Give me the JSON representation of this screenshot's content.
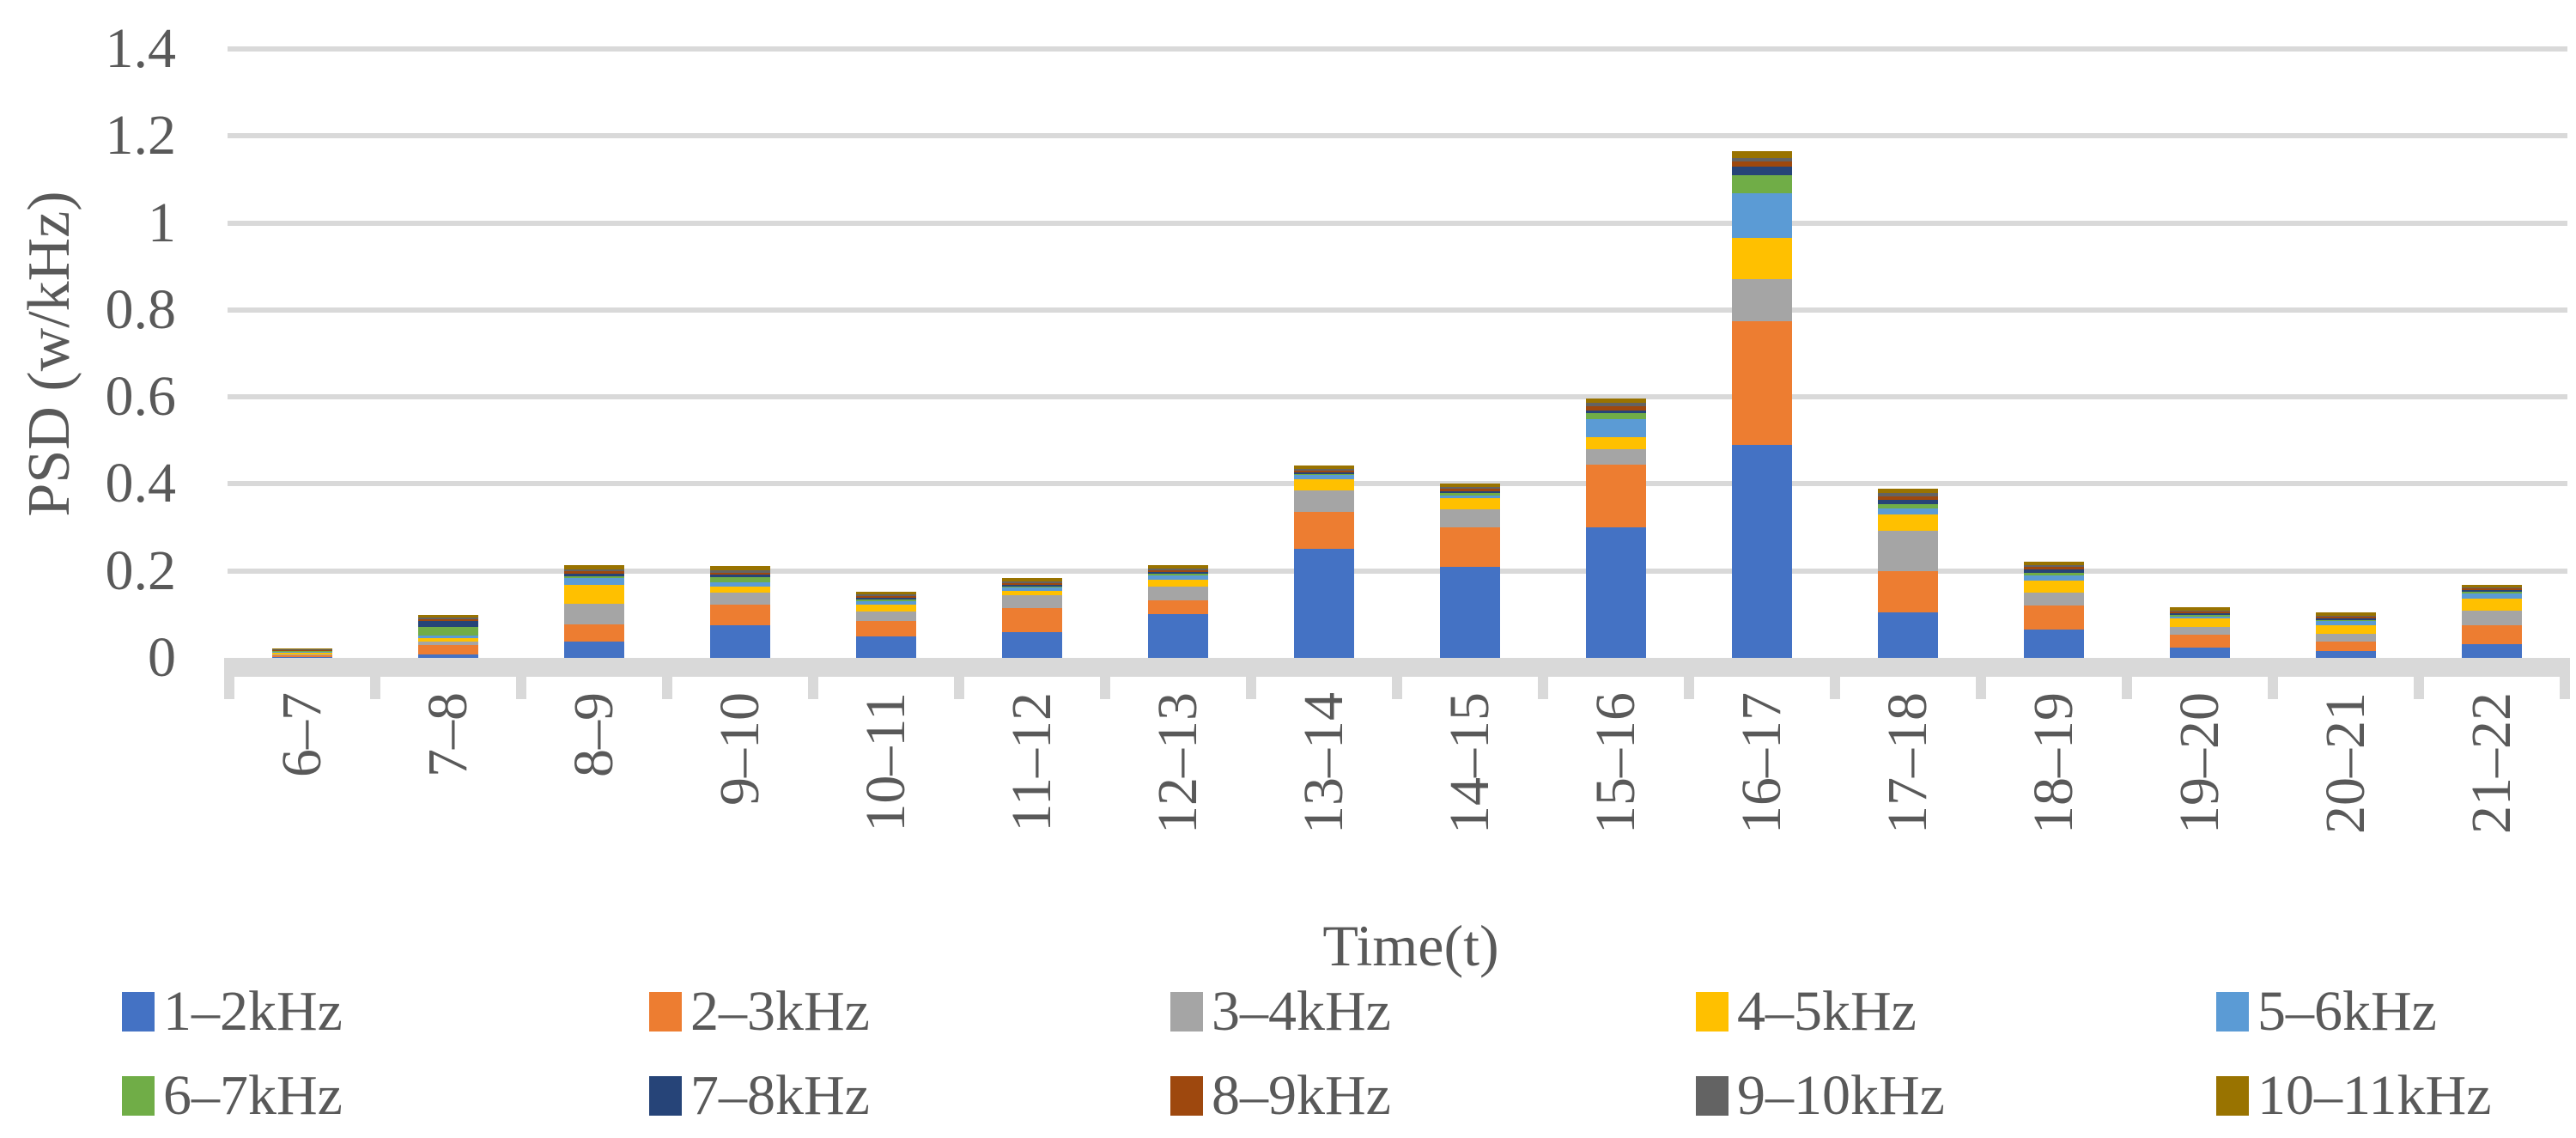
{
  "chart_data": {
    "type": "bar",
    "stacked": true,
    "title": "",
    "xlabel": "Time(t)",
    "ylabel": "PSD (w/kHz)",
    "ylim": [
      0,
      1.4
    ],
    "ytick_step": 0.2,
    "ytick_labels": [
      "0",
      "0.2",
      "0.4",
      "0.6",
      "0.8",
      "1",
      "1.2",
      "1.4"
    ],
    "grid": "horizontal",
    "legend_position": "bottom",
    "categories": [
      "6–7",
      "7–8",
      "8–9",
      "9–10",
      "10–11",
      "11–12",
      "12–13",
      "13–14",
      "14–15",
      "15–16",
      "16–17",
      "17–18",
      "18–19",
      "19–20",
      "20–21",
      "21–22"
    ],
    "series": [
      {
        "name": "1–2kHz",
        "color": "#4472C4",
        "values": [
          0.002,
          0.007,
          0.037,
          0.075,
          0.05,
          0.059,
          0.1,
          0.25,
          0.21,
          0.3,
          0.49,
          0.105,
          0.065,
          0.024,
          0.016,
          0.032
        ]
      },
      {
        "name": "2–3kHz",
        "color": "#ED7D31",
        "values": [
          0.003,
          0.022,
          0.04,
          0.047,
          0.035,
          0.055,
          0.032,
          0.085,
          0.09,
          0.145,
          0.285,
          0.095,
          0.056,
          0.029,
          0.021,
          0.043
        ]
      },
      {
        "name": "3–4kHz",
        "color": "#A5A5A5",
        "values": [
          0.002,
          0.009,
          0.047,
          0.028,
          0.022,
          0.03,
          0.031,
          0.05,
          0.042,
          0.035,
          0.095,
          0.092,
          0.03,
          0.018,
          0.018,
          0.034
        ]
      },
      {
        "name": "4–5kHz",
        "color": "#FFC000",
        "values": [
          0.004,
          0.008,
          0.044,
          0.013,
          0.015,
          0.01,
          0.016,
          0.025,
          0.025,
          0.027,
          0.095,
          0.038,
          0.027,
          0.02,
          0.02,
          0.028
        ]
      },
      {
        "name": "5–6kHz",
        "color": "#5B9BD5",
        "values": [
          0.002,
          0.006,
          0.015,
          0.01,
          0.008,
          0.007,
          0.01,
          0.01,
          0.006,
          0.041,
          0.103,
          0.014,
          0.012,
          0.004,
          0.01,
          0.011
        ]
      },
      {
        "name": "6–7kHz",
        "color": "#70AD47",
        "values": [
          0.003,
          0.02,
          0.004,
          0.012,
          0.004,
          0.002,
          0.004,
          0.003,
          0.006,
          0.014,
          0.042,
          0.01,
          0.006,
          0.004,
          0.002,
          0.004
        ]
      },
      {
        "name": "7–8kHz",
        "color": "#264478",
        "values": [
          0.001,
          0.012,
          0.006,
          0.006,
          0.004,
          0.004,
          0.005,
          0.003,
          0.004,
          0.006,
          0.02,
          0.009,
          0.007,
          0.003,
          0.004,
          0.004
        ]
      },
      {
        "name": "8–9kHz",
        "color": "#9E480E",
        "values": [
          0.001,
          0.004,
          0.006,
          0.005,
          0.004,
          0.004,
          0.003,
          0.005,
          0.006,
          0.01,
          0.012,
          0.008,
          0.006,
          0.004,
          0.004,
          0.004
        ]
      },
      {
        "name": "9–10kHz",
        "color": "#636363",
        "values": [
          0.001,
          0.005,
          0.004,
          0.005,
          0.004,
          0.004,
          0.004,
          0.003,
          0.004,
          0.008,
          0.008,
          0.008,
          0.004,
          0.002,
          0.002,
          0.002
        ]
      },
      {
        "name": "10–11kHz",
        "color": "#997300",
        "values": [
          0.003,
          0.006,
          0.01,
          0.01,
          0.006,
          0.008,
          0.008,
          0.008,
          0.008,
          0.01,
          0.015,
          0.01,
          0.008,
          0.008,
          0.007,
          0.006
        ]
      }
    ]
  },
  "colors": {
    "gridline": "#D9D9D9",
    "axis_line": "#D9D9D9",
    "text": "#595959",
    "background": "#FFFFFF"
  }
}
